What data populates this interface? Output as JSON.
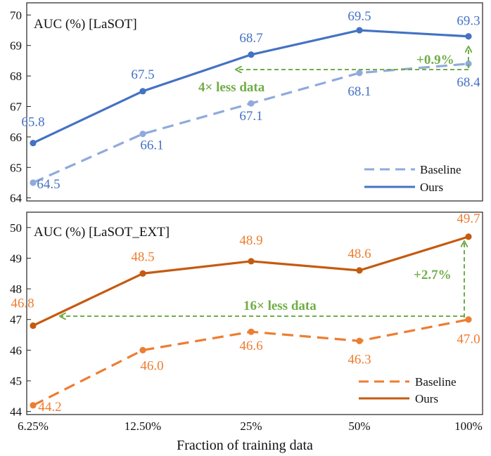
{
  "chart_data": [
    {
      "type": "line",
      "title": "AUC (%) [LaSOT]",
      "xlabel": "Fraction of training data",
      "ylabel": "",
      "categories": [
        "6.25%",
        "12.50%",
        "25%",
        "50%",
        "100%"
      ],
      "ylim": [
        63.9,
        70.4
      ],
      "yticks": [
        "64",
        "65",
        "66",
        "67",
        "68",
        "69",
        "70"
      ],
      "series": [
        {
          "name": "Baseline",
          "style": "dashed",
          "color": "#8faadc",
          "labelColor": "#4472c4",
          "values": [
            64.5,
            66.1,
            67.1,
            68.1,
            68.4
          ],
          "labels": [
            "64.5",
            "66.1",
            "67.1",
            "68.1",
            "68.4"
          ]
        },
        {
          "name": "Ours",
          "style": "solid",
          "color": "#4472c4",
          "labelColor": "#4472c4",
          "values": [
            65.8,
            67.5,
            68.7,
            69.5,
            69.3
          ],
          "labels": [
            "65.8",
            "67.5",
            "68.7",
            "69.5",
            "69.3"
          ]
        }
      ],
      "annotations": {
        "gain": "+0.9%",
        "less_data": "4× less data",
        "color": "#70ad47"
      },
      "legend": [
        "Baseline",
        "Ours"
      ],
      "legend_position": "bottom-right"
    },
    {
      "type": "line",
      "title": "AUC (%) [LaSOT_EXT]",
      "xlabel": "Fraction of training data",
      "ylabel": "",
      "categories": [
        "6.25%",
        "12.50%",
        "25%",
        "50%",
        "100%"
      ],
      "ylim": [
        43.9,
        50.5
      ],
      "yticks": [
        "44",
        "45",
        "46",
        "47",
        "48",
        "49",
        "50"
      ],
      "series": [
        {
          "name": "Baseline",
          "style": "dashed",
          "color": "#ed7d31",
          "labelColor": "#ed7d31",
          "values": [
            44.2,
            46.0,
            46.6,
            46.3,
            47.0
          ],
          "labels": [
            "44.2",
            "46.0",
            "46.6",
            "46.3",
            "47.0"
          ]
        },
        {
          "name": "Ours",
          "style": "solid",
          "color": "#c55a11",
          "labelColor": "#ed7d31",
          "values": [
            46.8,
            48.5,
            48.9,
            48.6,
            49.7
          ],
          "labels": [
            "46.8",
            "48.5",
            "48.9",
            "48.6",
            "49.7"
          ]
        }
      ],
      "annotations": {
        "gain": "+2.7%",
        "less_data": "16× less data",
        "color": "#70ad47"
      },
      "legend": [
        "Baseline",
        "Ours"
      ],
      "legend_position": "bottom-right"
    }
  ]
}
